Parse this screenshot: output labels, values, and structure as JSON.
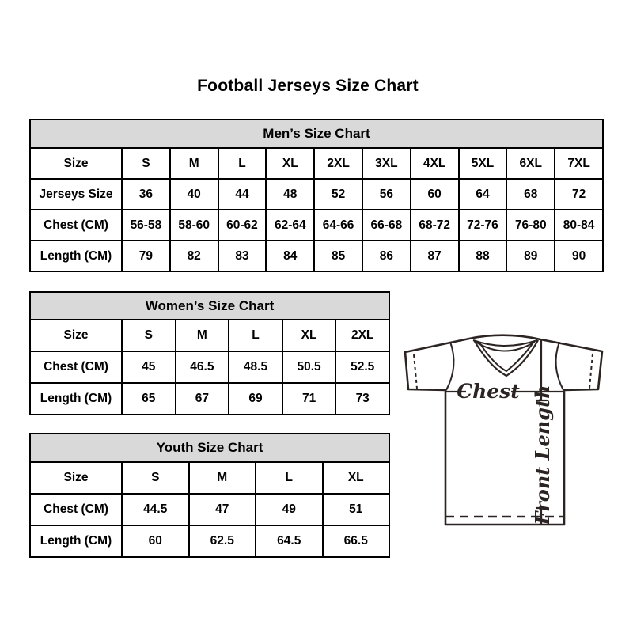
{
  "page": {
    "title": "Football Jerseys Size Chart",
    "background": "#ffffff"
  },
  "colors": {
    "table_header_bg": "#d9d9d9",
    "table_border": "#000000",
    "text": "#000000",
    "diagram_stroke": "#2b2422"
  },
  "chart_data": [
    {
      "type": "table",
      "title": "Men’s Size Chart",
      "rows": [
        [
          "Size",
          "S",
          "M",
          "L",
          "XL",
          "2XL",
          "3XL",
          "4XL",
          "5XL",
          "6XL",
          "7XL"
        ],
        [
          "Jerseys Size",
          "36",
          "40",
          "44",
          "48",
          "52",
          "56",
          "60",
          "64",
          "68",
          "72"
        ],
        [
          "Chest (CM)",
          "56-58",
          "58-60",
          "60-62",
          "62-64",
          "64-66",
          "66-68",
          "68-72",
          "72-76",
          "76-80",
          "80-84"
        ],
        [
          "Length (CM)",
          "79",
          "82",
          "83",
          "84",
          "85",
          "86",
          "87",
          "88",
          "89",
          "90"
        ]
      ]
    },
    {
      "type": "table",
      "title": "Women’s Size Chart",
      "rows": [
        [
          "Size",
          "S",
          "M",
          "L",
          "XL",
          "2XL"
        ],
        [
          "Chest (CM)",
          "45",
          "46.5",
          "48.5",
          "50.5",
          "52.5"
        ],
        [
          "Length (CM)",
          "65",
          "67",
          "69",
          "71",
          "73"
        ]
      ]
    },
    {
      "type": "table",
      "title": "Youth Size Chart",
      "rows": [
        [
          "Size",
          "S",
          "M",
          "L",
          "XL"
        ],
        [
          "Chest (CM)",
          "44.5",
          "47",
          "49",
          "51"
        ],
        [
          "Length (CM)",
          "60",
          "62.5",
          "64.5",
          "66.5"
        ]
      ]
    }
  ],
  "diagram": {
    "chest_label": "Chest",
    "front_length_label": "Front Length"
  }
}
